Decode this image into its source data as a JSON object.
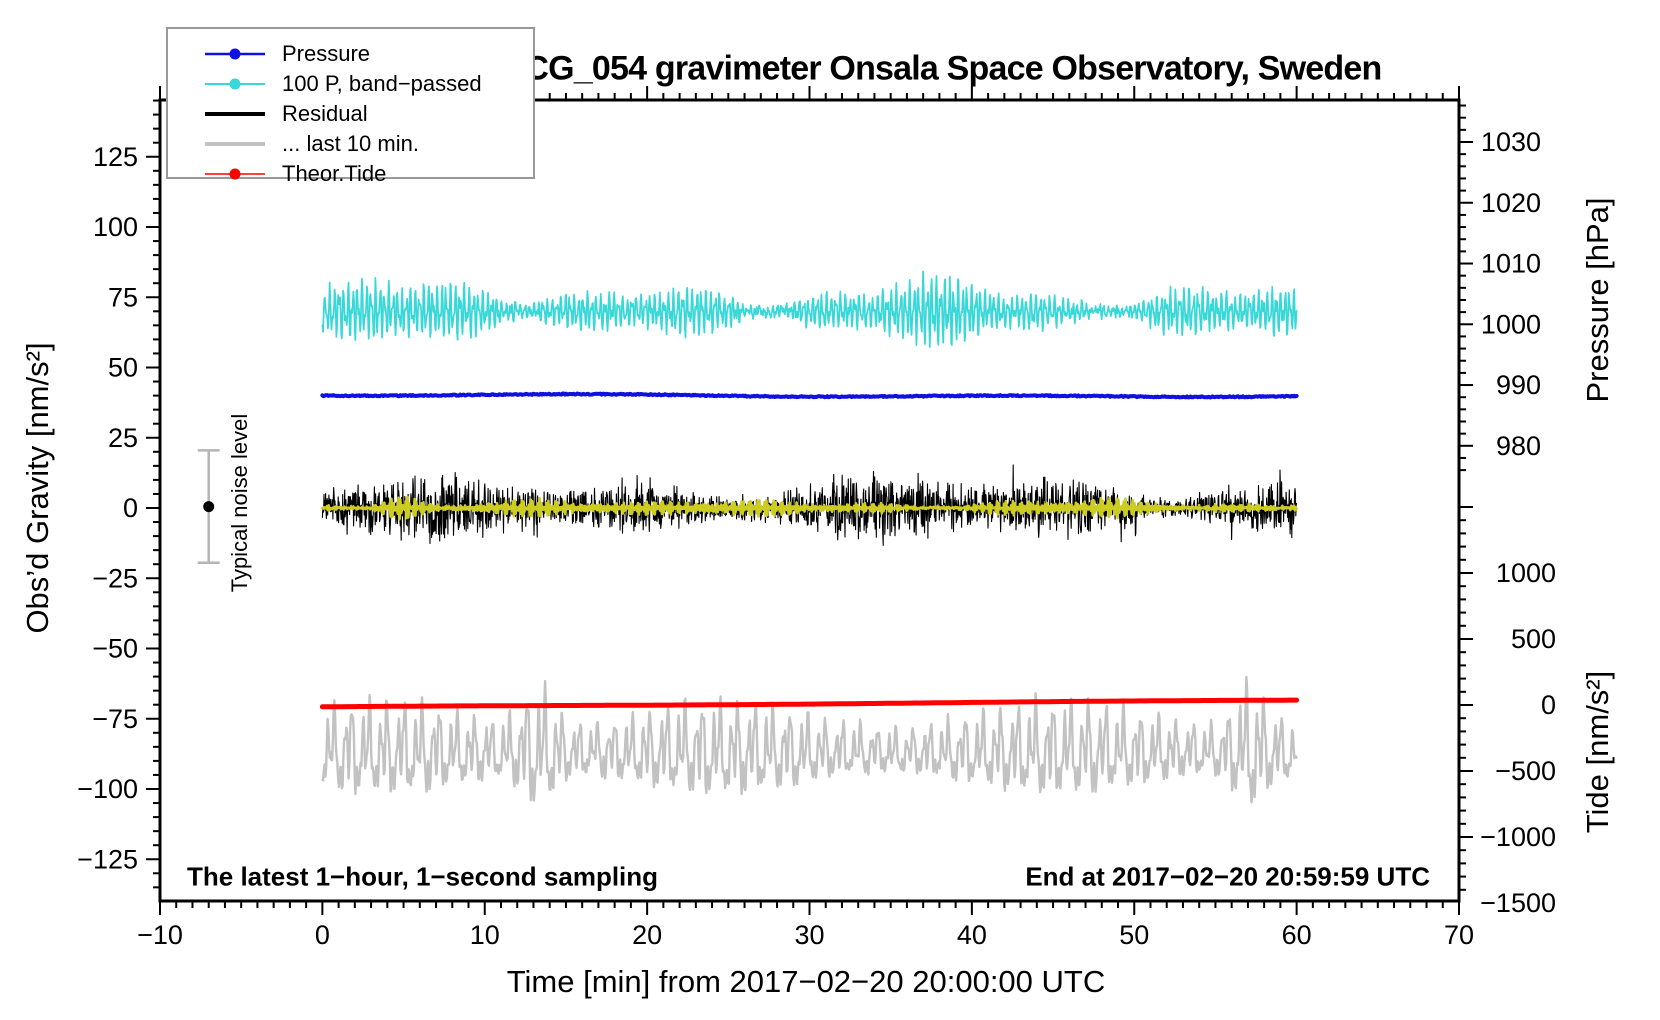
{
  "figure": {
    "title": "SCG_054 gravimeter Onsala Space Observatory, Sweden",
    "xlabel": "Time [min] from 2017−02−20 20:00:00 UTC",
    "ylabel_left": "Obs’d Gravity [nm/s²]",
    "ylabel_pressure": "Pressure [hPa]",
    "ylabel_tide": "Tide [nm/s²]",
    "annotation_left": "The latest 1−hour, 1−second sampling",
    "annotation_right": "End at 2017−02−20 20:59:59 UTC",
    "noise_bar_label": "Typical noise level"
  },
  "legend": {
    "items": [
      {
        "label": "Pressure",
        "color": "#1010e0",
        "line_width": 2.5,
        "dot": true
      },
      {
        "label": "100 P, band−passed",
        "color": "#38d8d8",
        "line_width": 2.0,
        "dot": true
      },
      {
        "label": "Residual",
        "color": "#000000",
        "line_width": 4.0,
        "dot": false
      },
      {
        "label": "... last 10 min.",
        "color": "#c2c2c2",
        "line_width": 4.0,
        "dot": false
      },
      {
        "label": "Theor.Tide",
        "color": "#ff0000",
        "line_width": 1.5,
        "dot": true
      }
    ]
  },
  "chart_data": {
    "type": "line",
    "title": "SCG_054 gravimeter Onsala Space Observatory, Sweden",
    "xlabel": "Time [min] from 2017−02−20 20:00:00 UTC",
    "x_range": [
      -10,
      70
    ],
    "grid": false,
    "axes": {
      "x": {
        "majors": [
          -10,
          0,
          10,
          20,
          30,
          40,
          50,
          60,
          70
        ],
        "labels": [
          "−10",
          "0",
          "10",
          "20",
          "30",
          "40",
          "50",
          "60",
          "70"
        ],
        "minor_step": 1
      },
      "gravity": {
        "title": "Obs’d Gravity [nm/s²]",
        "range": [
          -140,
          145
        ],
        "majors": [
          -125,
          -100,
          -75,
          -50,
          -25,
          0,
          25,
          50,
          75,
          100,
          125
        ],
        "labels": [
          "−125",
          "−100",
          "−75",
          "−50",
          "−25",
          "0",
          "25",
          "50",
          "75",
          "100",
          "125"
        ],
        "minor_step": 5
      },
      "pressure": {
        "title": "Pressure [hPa]",
        "majors": [
          980,
          990,
          1000,
          1010,
          1020,
          1030
        ],
        "labels": [
          "980",
          "990",
          "1000",
          "1010",
          "1020",
          "1030"
        ],
        "minor_step": 2,
        "minor_range": [
          976,
          1036
        ]
      },
      "tide": {
        "title": "Tide [nm/s²]",
        "majors": [
          -1500,
          -1000,
          -500,
          0,
          500,
          1000,
          1500
        ],
        "labeled_majors": [
          -1500,
          -1000,
          -500,
          0,
          500,
          1000
        ],
        "labels": [
          "−1500",
          "−1000",
          "−500",
          "0",
          "500",
          "1000"
        ],
        "minor_step": 100
      }
    },
    "series": [
      {
        "id": "residual_last10",
        "label": "... last 10 min.",
        "color": "#c2c2c2",
        "width": 2.4,
        "kind": "slow",
        "x_start": 0,
        "x_end": 60,
        "center": -87,
        "typ_amp": 14,
        "max_amp": 34,
        "points": 1300,
        "seed": 5
      },
      {
        "id": "theor_tide",
        "label": "Theor.Tide",
        "color": "#ff0000",
        "width": 5,
        "kind": "trend",
        "x_start": 0,
        "x_end": 60,
        "start": -70.9,
        "end": -68.4,
        "tide_start": -15,
        "tide_end": 35
      },
      {
        "id": "pressure_bandpassed",
        "label": "100 P, band−passed",
        "color": "#38d8d8",
        "width": 1.7,
        "kind": "bandpass",
        "x_start": 0,
        "x_end": 60,
        "center": 70,
        "typ_amp": 8,
        "max_amp": 19,
        "points": 1600,
        "seed": 7
      },
      {
        "id": "pressure",
        "label": "Pressure",
        "color": "#1010e0",
        "width": 4,
        "kind": "flat",
        "x_start": 0,
        "x_end": 60,
        "center": 40,
        "hpa_value": 988.5
      },
      {
        "id": "residual",
        "label": "Residual",
        "color": "#000000",
        "width": 1.1,
        "kind": "noise",
        "x_start": 0,
        "x_end": 60,
        "center": 0,
        "typ_amp": 11,
        "max_amp": 30,
        "points": 2400,
        "seed": 3
      },
      {
        "id": "residual_bandpassed_yellow",
        "label": "Residual band-passed (yellow)",
        "color": "#cccc22",
        "width": 2.6,
        "kind": "bandpass",
        "x_start": 0,
        "x_end": 60,
        "center": 0,
        "typ_amp": 2.1,
        "max_amp": 6.5,
        "points": 1100,
        "seed": 11,
        "bursts": [
          [
            4.8,
            1.8,
            1.9
          ],
          [
            23.5,
            0.7,
            8
          ]
        ]
      },
      {
        "id": "noise_bar",
        "label": "Typical noise level",
        "color": "#b5b5b5",
        "kind": "errorbar",
        "t": -7,
        "top_gravity": 20.5,
        "bottom_gravity": -19.5,
        "dot_gravity": 0.5
      }
    ]
  }
}
